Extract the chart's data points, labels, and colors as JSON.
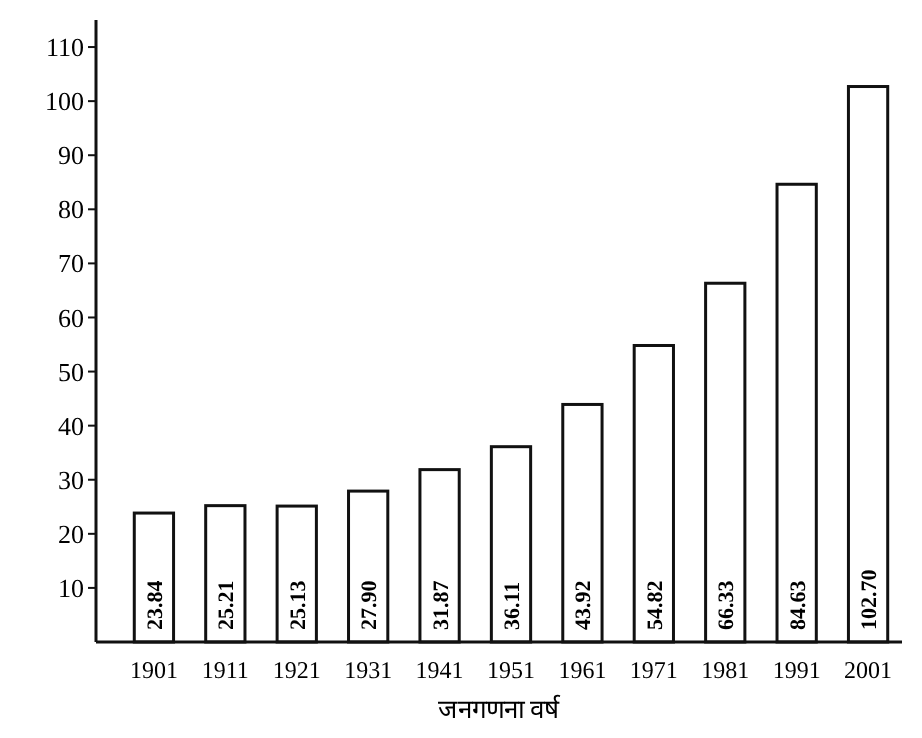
{
  "chart_data": {
    "type": "bar",
    "xlabel": "जनगणना वर्ष",
    "categories": [
      "1901",
      "1911",
      "1921",
      "1931",
      "1941",
      "1951",
      "1961",
      "1971",
      "1981",
      "1991",
      "2001"
    ],
    "values": [
      23.84,
      25.21,
      25.13,
      27.9,
      31.87,
      36.11,
      43.92,
      54.82,
      66.33,
      84.63,
      102.7
    ],
    "value_labels": [
      "23.84",
      "25.21",
      "25.13",
      "27.90",
      "31.87",
      "36.11",
      "43.92",
      "54.82",
      "66.33",
      "84.63",
      "102.70"
    ],
    "color": "#ffffff",
    "ylim": [
      0,
      115
    ],
    "yticks": [
      10,
      20,
      30,
      40,
      50,
      60,
      70,
      80,
      90,
      100,
      110
    ],
    "grid": false
  }
}
